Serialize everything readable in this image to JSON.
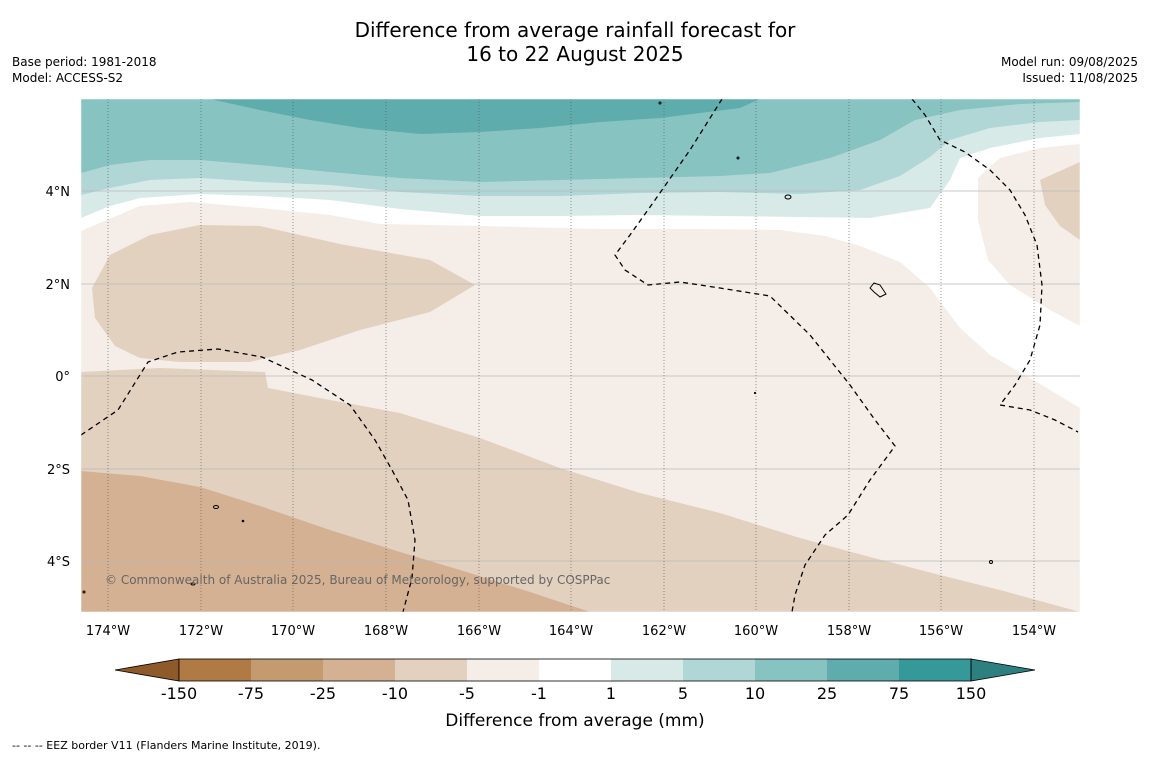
{
  "title": {
    "line1": "Difference from average rainfall forecast for",
    "line2": "16 to 22 August 2025"
  },
  "meta_left": {
    "base_period": "Base period: 1981-2018",
    "model": "Model: ACCESS-S2"
  },
  "meta_right": {
    "model_run": "Model run: 09/08/2025",
    "issued": "Issued: 11/08/2025"
  },
  "map": {
    "lat_labels": [
      "4°N",
      "2°N",
      "0°",
      "2°S",
      "4°S"
    ],
    "lon_labels": [
      "174°W",
      "172°W",
      "170°W",
      "168°W",
      "166°W",
      "164°W",
      "162°W",
      "160°W",
      "158°W",
      "156°W",
      "154°W"
    ],
    "copyright": "© Commonwealth of Australia 2025, Bureau of Meteorology, supported by COSPPac"
  },
  "colorbar": {
    "tick_labels": [
      "-150",
      "-75",
      "-25",
      "-10",
      "-5",
      "-1",
      "1",
      "5",
      "10",
      "25",
      "75",
      "150"
    ],
    "label": "Difference from average (mm)",
    "colors": {
      "below_min": "#8e5a2a",
      "bins": [
        "#b07a44",
        "#c49a6f",
        "#d4b192",
        "#e3d1c0",
        "#f4ede8",
        "#ffffff",
        "#d8eae8",
        "#b0d7d6",
        "#86c3c1",
        "#5eacac",
        "#35999a"
      ],
      "above_max": "#2e7f80"
    }
  },
  "footer": {
    "eez_note": "--  --  -- EEZ border V11 (Flanders Marine Institute, 2019)."
  }
}
